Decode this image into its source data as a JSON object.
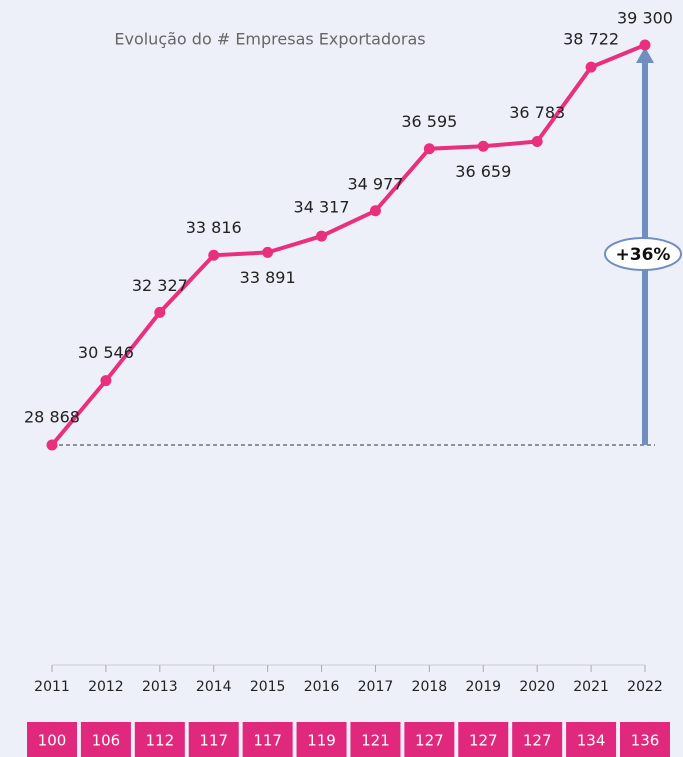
{
  "chart_data": {
    "type": "line",
    "title": "Evolução do # Empresas Exportadoras",
    "categories": [
      "2011",
      "2012",
      "2013",
      "2014",
      "2015",
      "2016",
      "2017",
      "2018",
      "2019",
      "2020",
      "2021",
      "2022"
    ],
    "series": [
      {
        "name": "Empresas Exportadoras",
        "color": "#e8307f",
        "values": [
          28868,
          30546,
          32327,
          33816,
          33891,
          34317,
          34977,
          36595,
          36659,
          36783,
          38722,
          39300
        ],
        "value_labels": [
          "28 868",
          "30 546",
          "32 327",
          "33 816",
          "33 891",
          "34 317",
          "34 977",
          "36 595",
          "36 659",
          "36 783",
          "38 722",
          "39 300"
        ]
      }
    ],
    "index_values": [
      100,
      106,
      112,
      117,
      117,
      119,
      121,
      127,
      127,
      127,
      134,
      136
    ],
    "annotation": "+36%"
  }
}
